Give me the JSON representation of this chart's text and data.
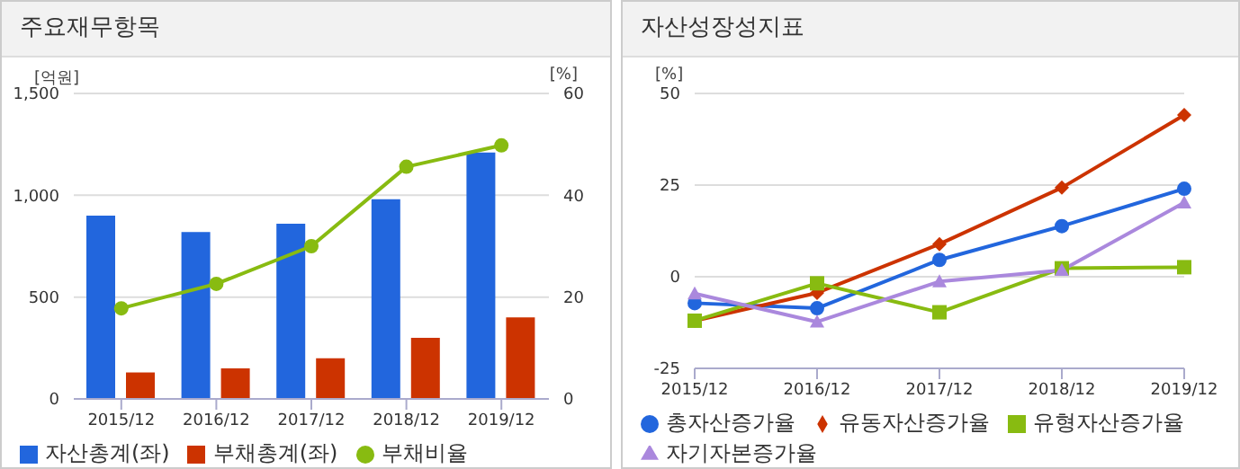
{
  "chart_data": [
    {
      "type": "bar",
      "title": "주요재무항목",
      "categories": [
        "2015/12",
        "2016/12",
        "2017/12",
        "2018/12",
        "2019/12"
      ],
      "ylabel": "[억원]",
      "y2label": "[%]",
      "ylim": [
        0,
        1500
      ],
      "yticks": [
        0,
        {
          "value": 500,
          "label": "500"
        },
        {
          "value": 1000,
          "label": "1,000"
        },
        {
          "value": 1500,
          "label": "1,500"
        }
      ],
      "y2lim": [
        0,
        60
      ],
      "y2ticks": [
        0,
        20,
        40,
        60
      ],
      "grid": "y",
      "legend": "bottom",
      "series": [
        {
          "name": "자산총계(좌)",
          "color": "#2266dd",
          "values": [
            900,
            820,
            860,
            980,
            1210
          ]
        },
        {
          "name": "부채총계(좌)",
          "color": "#cc3300",
          "values": [
            130,
            150,
            200,
            300,
            400
          ]
        },
        {
          "name": "부채비율",
          "type": "line",
          "axis": "y2",
          "marker": "circle",
          "color": "#88bb11",
          "values": [
            17.8,
            22.6,
            30,
            45.6,
            49.8
          ]
        }
      ]
    },
    {
      "type": "line",
      "title": "자산성장성지표",
      "categories": [
        "2015/12",
        "2016/12",
        "2017/12",
        "2018/12",
        "2019/12"
      ],
      "ylabel": "[%]",
      "ylim": [
        -25,
        50
      ],
      "yticks": [
        -25,
        0,
        25,
        50
      ],
      "grid": "y",
      "legend": "bottom",
      "series": [
        {
          "name": "총자산증가율",
          "color": "#2266dd",
          "marker": "circle",
          "values": [
            -7.2,
            -8.6,
            4.6,
            13.8,
            24
          ]
        },
        {
          "name": "유동자산증가율",
          "color": "#cc3300",
          "marker": "diamond",
          "values": [
            -12,
            -4.4,
            8.9,
            24.3,
            44.1
          ]
        },
        {
          "name": "유형자산증가율",
          "color": "#88bb11",
          "marker": "square",
          "values": [
            -12,
            -1.8,
            -9.7,
            2.3,
            2.6
          ]
        },
        {
          "name": "자기자본증가율",
          "color": "#aa88dd",
          "marker": "triangle",
          "values": [
            -4.6,
            -12.3,
            -1.3,
            1.8,
            20.2
          ]
        }
      ]
    }
  ]
}
